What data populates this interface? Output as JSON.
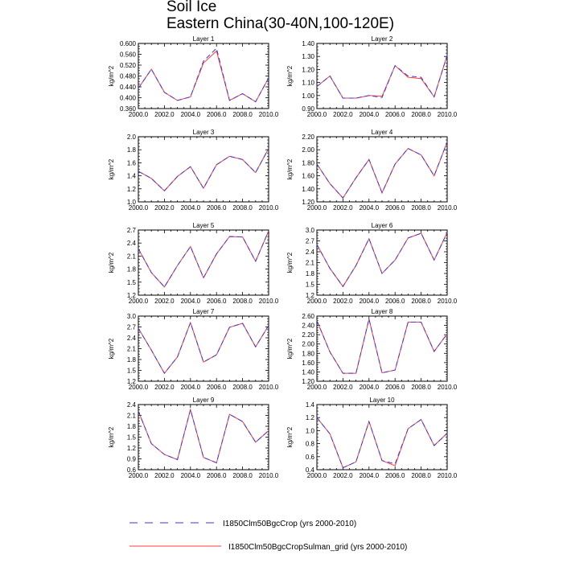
{
  "title": "Soil Ice",
  "subtitle": "Eastern China(30-40N,100-120E)",
  "legend": [
    {
      "label": "I1850Clm50BgcCrop (yrs 2000-2010)",
      "color": "#3a3adf",
      "style": "dashed"
    },
    {
      "label": "I1850Clm50BgcCropSulman_grid (yrs 2000-2010)",
      "color": "#ff3b3b",
      "style": "solid"
    }
  ],
  "chart_data": [
    {
      "type": "line",
      "title": "Layer 1",
      "ylabel": "kg/m^2",
      "xlim": [
        2000,
        2010
      ],
      "ylim": [
        0.36,
        0.6
      ],
      "x_ticks": [
        "2000.0",
        "2002.0",
        "2004.0",
        "2006.0",
        "2008.0",
        "2010.0"
      ],
      "y_ticks": [
        "0.360",
        "0.400",
        "0.440",
        "0.480",
        "0.520",
        "0.560",
        "0.600"
      ],
      "x": [
        2000,
        2001,
        2002,
        2003,
        2004,
        2005,
        2006,
        2007,
        2008,
        2009,
        2010
      ],
      "series": [
        {
          "name": "I1850Clm50BgcCrop (yrs 2000-2010)",
          "values": [
            0.435,
            0.505,
            0.42,
            0.39,
            0.403,
            0.535,
            0.582,
            0.39,
            0.415,
            0.385,
            0.473
          ]
        },
        {
          "name": "I1850Clm50BgcCropSulman_grid (yrs 2000-2010)",
          "values": [
            0.435,
            0.505,
            0.42,
            0.39,
            0.403,
            0.528,
            0.572,
            0.39,
            0.415,
            0.385,
            0.473
          ]
        }
      ]
    },
    {
      "type": "line",
      "title": "Layer 2",
      "ylabel": "kg/m^2",
      "xlim": [
        2000,
        2010
      ],
      "ylim": [
        0.9,
        1.4
      ],
      "x_ticks": [
        "2000.0",
        "2002.0",
        "2004.0",
        "2006.0",
        "2008.0",
        "2010.0"
      ],
      "y_ticks": [
        "0.90",
        "1.00",
        "1.10",
        "1.20",
        "1.30",
        "1.40"
      ],
      "x": [
        2000,
        2001,
        2002,
        2003,
        2004,
        2005,
        2006,
        2007,
        2008,
        2009,
        2010
      ],
      "series": [
        {
          "name": "I1850Clm50BgcCrop (yrs 2000-2010)",
          "values": [
            1.07,
            1.15,
            0.98,
            0.98,
            1.0,
            0.985,
            1.23,
            1.15,
            1.14,
            0.99,
            1.31
          ]
        },
        {
          "name": "I1850Clm50BgcCropSulman_grid (yrs 2000-2010)",
          "values": [
            1.07,
            1.15,
            0.98,
            0.98,
            1.0,
            0.995,
            1.23,
            1.14,
            1.13,
            0.99,
            1.31
          ]
        }
      ]
    },
    {
      "type": "line",
      "title": "Layer 3",
      "ylabel": "kg/m^2",
      "xlim": [
        2000,
        2010
      ],
      "ylim": [
        1.0,
        2.0
      ],
      "x_ticks": [
        "2000.0",
        "2002.0",
        "2004.0",
        "2006.0",
        "2008.0",
        "2010.0"
      ],
      "y_ticks": [
        "1.0",
        "1.2",
        "1.4",
        "1.6",
        "1.8",
        "2.0"
      ],
      "x": [
        2000,
        2001,
        2002,
        2003,
        2004,
        2005,
        2006,
        2007,
        2008,
        2009,
        2010
      ],
      "series": [
        {
          "name": "I1850Clm50BgcCrop (yrs 2000-2010)",
          "values": [
            1.47,
            1.36,
            1.17,
            1.39,
            1.54,
            1.21,
            1.57,
            1.7,
            1.65,
            1.45,
            1.82
          ]
        },
        {
          "name": "I1850Clm50BgcCropSulman_grid (yrs 2000-2010)",
          "values": [
            1.47,
            1.36,
            1.17,
            1.39,
            1.54,
            1.21,
            1.57,
            1.7,
            1.65,
            1.45,
            1.82
          ]
        }
      ]
    },
    {
      "type": "line",
      "title": "Layer 4",
      "ylabel": "kg/m^2",
      "xlim": [
        2000,
        2010
      ],
      "ylim": [
        1.2,
        2.2
      ],
      "x_ticks": [
        "2000.0",
        "2002.0",
        "2004.0",
        "2006.0",
        "2008.0",
        "2010.0"
      ],
      "y_ticks": [
        "1.20",
        "1.40",
        "1.60",
        "1.80",
        "2.00",
        "2.20"
      ],
      "x": [
        2000,
        2001,
        2002,
        2003,
        2004,
        2005,
        2006,
        2007,
        2008,
        2009,
        2010
      ],
      "series": [
        {
          "name": "I1850Clm50BgcCrop (yrs 2000-2010)",
          "values": [
            1.78,
            1.48,
            1.26,
            1.57,
            1.85,
            1.34,
            1.78,
            2.02,
            1.92,
            1.6,
            2.12
          ]
        },
        {
          "name": "I1850Clm50BgcCropSulman_grid (yrs 2000-2010)",
          "values": [
            1.78,
            1.48,
            1.26,
            1.57,
            1.85,
            1.34,
            1.78,
            2.02,
            1.92,
            1.6,
            2.12
          ]
        }
      ]
    },
    {
      "type": "line",
      "title": "Layer 5",
      "ylabel": "kg/m^2",
      "xlim": [
        2000,
        2010
      ],
      "ylim": [
        1.2,
        2.7
      ],
      "x_ticks": [
        "2000.0",
        "2002.0",
        "2004.0",
        "2006.0",
        "2008.0",
        "2010.0"
      ],
      "y_ticks": [
        "1.2",
        "1.5",
        "1.8",
        "2.1",
        "2.4",
        "2.7"
      ],
      "x": [
        2000,
        2001,
        2002,
        2003,
        2004,
        2005,
        2006,
        2007,
        2008,
        2009,
        2010
      ],
      "series": [
        {
          "name": "I1850Clm50BgcCrop (yrs 2000-2010)",
          "values": [
            2.27,
            1.72,
            1.39,
            1.88,
            2.32,
            1.6,
            2.15,
            2.55,
            2.54,
            1.98,
            2.68
          ]
        },
        {
          "name": "I1850Clm50BgcCropSulman_grid (yrs 2000-2010)",
          "values": [
            2.27,
            1.72,
            1.39,
            1.88,
            2.32,
            1.6,
            2.15,
            2.55,
            2.54,
            1.98,
            2.68
          ]
        }
      ]
    },
    {
      "type": "line",
      "title": "Layer 6",
      "ylabel": "kg/m^2",
      "xlim": [
        2000,
        2010
      ],
      "ylim": [
        1.2,
        3.0
      ],
      "x_ticks": [
        "2000.0",
        "2002.0",
        "2004.0",
        "2006.0",
        "2008.0",
        "2010.0"
      ],
      "y_ticks": [
        "1.2",
        "1.5",
        "1.8",
        "2.1",
        "2.4",
        "2.7",
        "3.0"
      ],
      "x": [
        2000,
        2001,
        2002,
        2003,
        2004,
        2005,
        2006,
        2007,
        2008,
        2009,
        2010
      ],
      "series": [
        {
          "name": "I1850Clm50BgcCrop (yrs 2000-2010)",
          "values": [
            2.6,
            1.94,
            1.44,
            2.02,
            2.76,
            1.8,
            2.17,
            2.78,
            2.91,
            2.17,
            2.93
          ]
        },
        {
          "name": "I1850Clm50BgcCropSulman_grid (yrs 2000-2010)",
          "values": [
            2.6,
            1.94,
            1.44,
            2.02,
            2.76,
            1.8,
            2.17,
            2.78,
            2.91,
            2.17,
            2.93
          ]
        }
      ]
    },
    {
      "type": "line",
      "title": "Layer 7",
      "ylabel": "kg/m^2",
      "xlim": [
        2000,
        2010
      ],
      "ylim": [
        1.2,
        3.0
      ],
      "x_ticks": [
        "2000.0",
        "2002.0",
        "2004.0",
        "2006.0",
        "2008.0",
        "2010.0"
      ],
      "y_ticks": [
        "1.2",
        "1.5",
        "1.8",
        "2.1",
        "2.4",
        "2.7",
        "3.0"
      ],
      "x": [
        2000,
        2001,
        2002,
        2003,
        2004,
        2005,
        2006,
        2007,
        2008,
        2009,
        2010
      ],
      "series": [
        {
          "name": "I1850Clm50BgcCrop (yrs 2000-2010)",
          "values": [
            2.66,
            2.06,
            1.42,
            1.87,
            2.82,
            1.73,
            1.93,
            2.69,
            2.8,
            2.15,
            2.74
          ]
        },
        {
          "name": "I1850Clm50BgcCropSulman_grid (yrs 2000-2010)",
          "values": [
            2.66,
            2.06,
            1.42,
            1.87,
            2.82,
            1.73,
            1.93,
            2.69,
            2.8,
            2.15,
            2.74
          ]
        }
      ]
    },
    {
      "type": "line",
      "title": "Layer 8",
      "ylabel": "kg/m^2",
      "xlim": [
        2000,
        2010
      ],
      "ylim": [
        1.2,
        2.6
      ],
      "x_ticks": [
        "2000.0",
        "2002.0",
        "2004.0",
        "2006.0",
        "2008.0",
        "2010.0"
      ],
      "y_ticks": [
        "1.20",
        "1.40",
        "1.60",
        "1.80",
        "2.00",
        "2.20",
        "2.40",
        "2.60"
      ],
      "x": [
        2000,
        2001,
        2002,
        2003,
        2004,
        2005,
        2006,
        2007,
        2008,
        2009,
        2010
      ],
      "series": [
        {
          "name": "I1850Clm50BgcCrop (yrs 2000-2010)",
          "values": [
            2.5,
            1.83,
            1.37,
            1.37,
            2.54,
            1.38,
            1.44,
            2.47,
            2.47,
            1.84,
            2.22
          ]
        },
        {
          "name": "I1850Clm50BgcCropSulman_grid (yrs 2000-2010)",
          "values": [
            2.5,
            1.83,
            1.37,
            1.37,
            2.53,
            1.38,
            1.44,
            2.47,
            2.47,
            1.84,
            2.22
          ]
        }
      ]
    },
    {
      "type": "line",
      "title": "Layer 9",
      "ylabel": "kg/m^2",
      "xlim": [
        2000,
        2010
      ],
      "ylim": [
        0.6,
        2.4
      ],
      "x_ticks": [
        "2000.0",
        "2002.0",
        "2004.0",
        "2006.0",
        "2008.0",
        "2010.0"
      ],
      "y_ticks": [
        "0.6",
        "0.9",
        "1.2",
        "1.5",
        "1.8",
        "2.1",
        "2.4"
      ],
      "x": [
        2000,
        2001,
        2002,
        2003,
        2004,
        2005,
        2006,
        2007,
        2008,
        2009,
        2010
      ],
      "series": [
        {
          "name": "I1850Clm50BgcCrop (yrs 2000-2010)",
          "values": [
            2.22,
            1.32,
            1.02,
            0.88,
            2.26,
            0.94,
            0.79,
            2.13,
            1.93,
            1.36,
            1.68
          ]
        },
        {
          "name": "I1850Clm50BgcCropSulman_grid (yrs 2000-2010)",
          "values": [
            2.22,
            1.32,
            1.02,
            0.88,
            2.26,
            0.94,
            0.79,
            2.13,
            1.93,
            1.36,
            1.68
          ]
        }
      ]
    },
    {
      "type": "line",
      "title": "Layer 10",
      "ylabel": "kg/m^2",
      "xlim": [
        2000,
        2010
      ],
      "ylim": [
        0.4,
        1.4
      ],
      "x_ticks": [
        "2000.0",
        "2002.0",
        "2004.0",
        "2006.0",
        "2008.0",
        "2010.0"
      ],
      "y_ticks": [
        "0.4",
        "0.6",
        "0.8",
        "1.0",
        "1.2",
        "1.4"
      ],
      "x": [
        2000,
        2001,
        2002,
        2003,
        2004,
        2005,
        2006,
        2007,
        2008,
        2009,
        2010
      ],
      "series": [
        {
          "name": "I1850Clm50BgcCrop (yrs 2000-2010)",
          "values": [
            1.2,
            0.95,
            0.43,
            0.52,
            1.14,
            0.54,
            0.49,
            1.03,
            1.17,
            0.77,
            0.96
          ]
        },
        {
          "name": "I1850Clm50BgcCropSulman_grid (yrs 2000-2010)",
          "values": [
            1.2,
            0.95,
            0.43,
            0.52,
            1.14,
            0.54,
            0.46,
            1.03,
            1.17,
            0.77,
            0.96
          ]
        }
      ]
    }
  ]
}
